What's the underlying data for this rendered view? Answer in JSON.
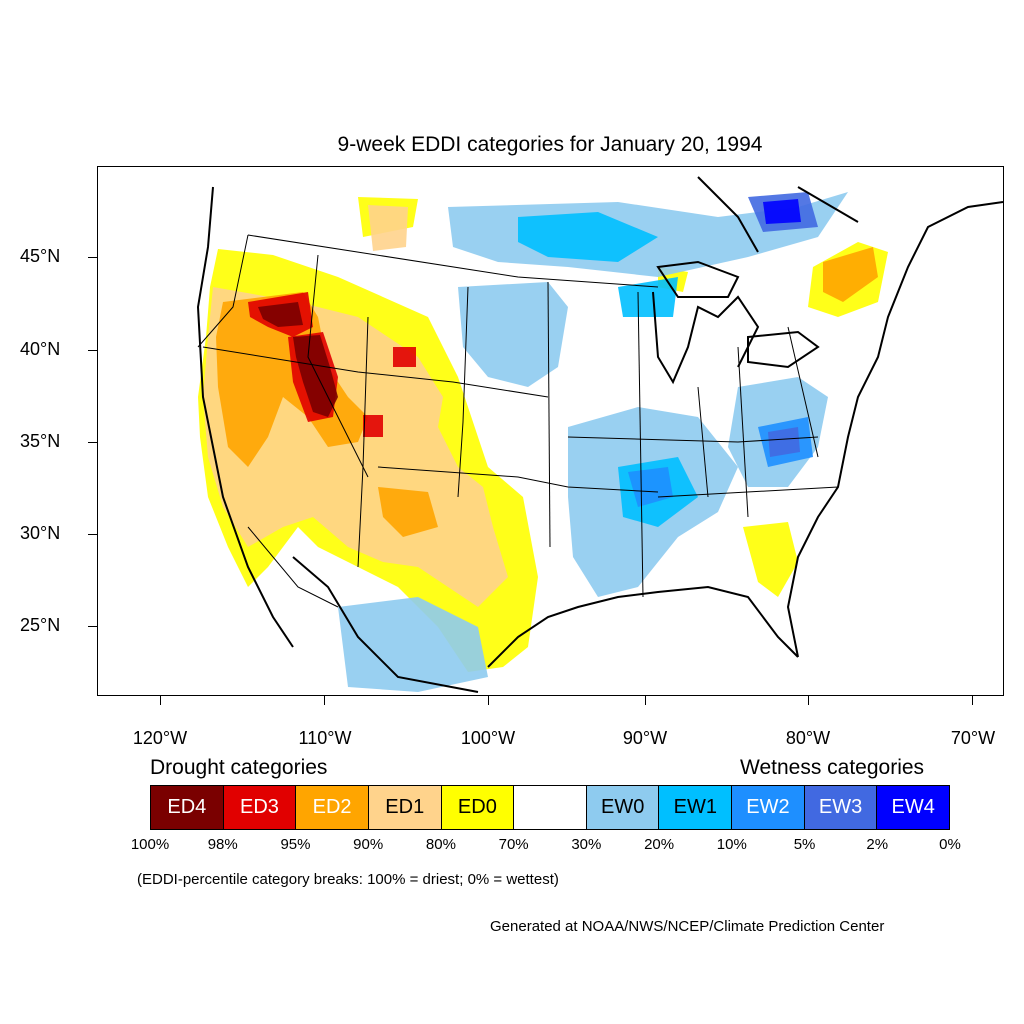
{
  "title": "9-week EDDI categories for January 20, 1994",
  "map": {
    "lat_labels": [
      "45°N",
      "40°N",
      "35°N",
      "30°N",
      "25°N"
    ],
    "lon_labels": [
      "120°W",
      "110°W",
      "100°W",
      "90°W",
      "80°W",
      "70°W"
    ],
    "colors": {
      "ED4": "#7a0000",
      "ED3": "#e10000",
      "ED2": "#ffa500",
      "ED1": "#ffd38c",
      "ED0": "#ffff00",
      "EW0": "#8ecbef",
      "EW1": "#00bfff",
      "EW2": "#1e8fff",
      "EW3": "#4169e1",
      "EW4": "#0000ff"
    }
  },
  "legend": {
    "drought_heading": "Drought categories",
    "wetness_heading": "Wetness categories",
    "categories": [
      {
        "label": "ED4",
        "color": "#7a0000",
        "text_color": "#ffffff"
      },
      {
        "label": "ED3",
        "color": "#e10000",
        "text_color": "#ffffff"
      },
      {
        "label": "ED2",
        "color": "#ffa500",
        "text_color": "#ffffff"
      },
      {
        "label": "ED1",
        "color": "#ffd38c",
        "text_color": "#000000"
      },
      {
        "label": "ED0",
        "color": "#ffff00",
        "text_color": "#000000"
      },
      {
        "label": "",
        "color": "#ffffff",
        "text_color": "#000000"
      },
      {
        "label": "EW0",
        "color": "#8ecbef",
        "text_color": "#000000"
      },
      {
        "label": "EW1",
        "color": "#00bfff",
        "text_color": "#000000"
      },
      {
        "label": "EW2",
        "color": "#1e8fff",
        "text_color": "#ffffff"
      },
      {
        "label": "EW3",
        "color": "#4169e1",
        "text_color": "#ffffff"
      },
      {
        "label": "EW4",
        "color": "#0000ff",
        "text_color": "#ffffff"
      }
    ],
    "breaks": [
      "100%",
      "98%",
      "95%",
      "90%",
      "80%",
      "70%",
      "30%",
      "20%",
      "10%",
      "5%",
      "2%",
      "0%"
    ],
    "note": "(EDDI-percentile category breaks: 100% = driest; 0% = wettest)"
  },
  "credit": "Generated at NOAA/NWS/NCEP/Climate Prediction Center"
}
